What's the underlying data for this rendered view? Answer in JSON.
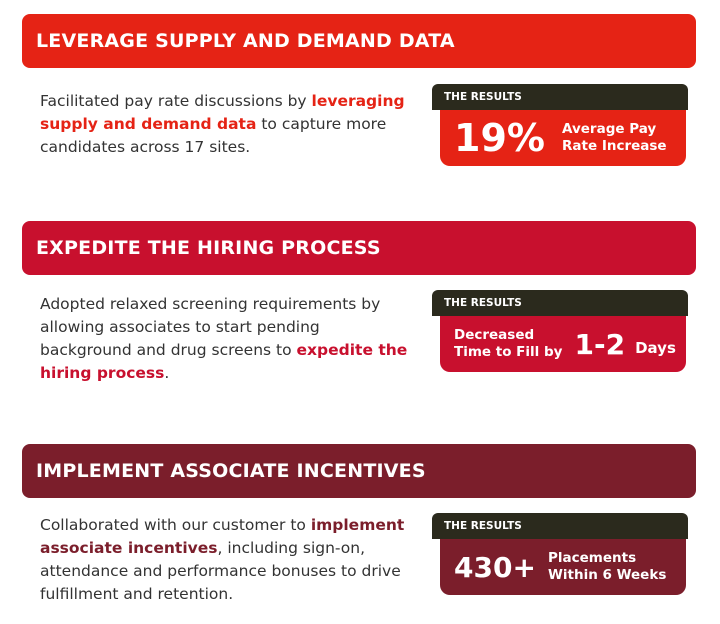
{
  "colors": {
    "section1": "#e52315",
    "section2": "#c8102e",
    "section3": "#7b1e2b",
    "results_tab": "#2b2a1d",
    "white": "#ffffff"
  },
  "sections": [
    {
      "title": "LEVERAGE SUPPLY AND DEMAND DATA",
      "desc_before": "Facilitated pay rate discussions by ",
      "highlight": "leveraging supply and demand data",
      "desc_after": " to capture more candidates across 17 sites.",
      "results_label": "THE RESULTS",
      "metric_big": "19%",
      "metric_line1": "Average Pay",
      "metric_line2": "Rate Increase"
    },
    {
      "title": "EXPEDITE THE HIRING PROCESS",
      "desc_before": "Adopted relaxed screening requirements by allowing associates to start pending background and drug screens to ",
      "highlight": "expedite the hiring process",
      "desc_after": ".",
      "results_label": "THE RESULTS",
      "metric_pre1": "Decreased",
      "metric_pre2": "Time to Fill by",
      "metric_big": "1-2",
      "metric_unit": "Days"
    },
    {
      "title": "IMPLEMENT ASSOCIATE INCENTIVES",
      "desc_before": "Collaborated with our customer to ",
      "highlight": "implement associate incentives",
      "desc_after": ", including sign-on, attendance and performance bonuses to drive fulfillment and retention.",
      "results_label": "THE RESULTS",
      "metric_big": "430+",
      "metric_line1": "Placements",
      "metric_line2": "Within 6 Weeks"
    }
  ]
}
